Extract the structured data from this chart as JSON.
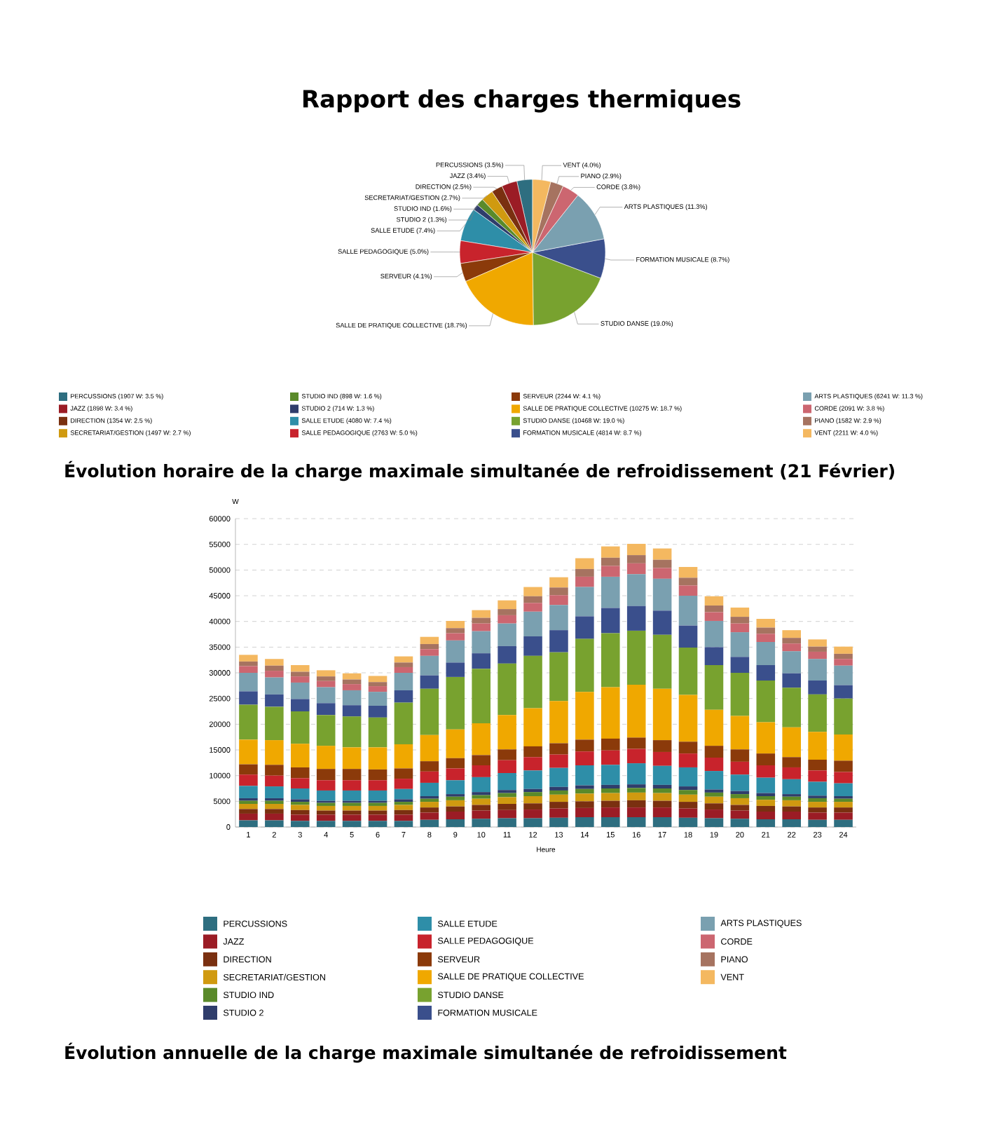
{
  "chart_data": [
    {
      "type": "pie",
      "title": "Rapport des charges thermiques",
      "legend": "bottom",
      "categories": [
        "PERCUSSIONS (1907 W: 3.5 %)",
        "JAZZ (1898 W: 3.4 %)",
        "DIRECTION (1354 W: 2.5 %)",
        "SECRETARIAT/GESTION (1497 W: 2.7 %)",
        "STUDIO IND (898 W: 1.6 %)",
        "STUDIO 2 (714 W: 1.3 %)",
        "SALLE ETUDE (4080 W: 7.4 %)",
        "SALLE PEDAGOGIQUE (2763 W: 5.0 %)",
        "SERVEUR (2244 W: 4.1 %)",
        "SALLE DE PRATIQUE COLLECTIVE (10275 W: 18.7 %)",
        "STUDIO DANSE (10468 W: 19.0 %)",
        "FORMATION MUSICALE (4814 W: 8.7 %)",
        "ARTS PLASTIQUES (6241 W: 11.3 %)",
        "CORDE (2091 W: 3.8 %)",
        "PIANO (1582 W: 2.9 %)",
        "VENT (2211 W: 4.0 %)"
      ],
      "values": [
        1907,
        1898,
        1354,
        1497,
        898,
        714,
        4080,
        2763,
        2244,
        10275,
        10468,
        4814,
        6241,
        2091,
        1582,
        2211
      ],
      "annotations": [
        "PERCUSSIONS (3.5%)",
        "JAZZ (3.4%)",
        "DIRECTION (2.5%)",
        "SECRETARIAT/GESTION (2.7%)",
        "STUDIO IND (1.6%)",
        "STUDIO 2 (1.3%)",
        "SALLE ETUDE (7.4%)",
        "SALLE PEDAGOGIQUE (5.0%)",
        "SERVEUR (4.1%)",
        "SALLE DE PRATIQUE COLLECTIVE (18.7%)",
        "STUDIO DANSE (19.0%)",
        "FORMATION MUSICALE (8.7%)",
        "ARTS PLASTIQUES (11.3%)",
        "CORDE (3.8%)",
        "PIANO (2.9%)",
        "VENT (4.0%)"
      ],
      "colors": [
        "#2e6e80",
        "#9b1c25",
        "#7a3010",
        "#d09a10",
        "#5a8a2a",
        "#2f3d6b",
        "#2e8ea8",
        "#c8232c",
        "#8b3a0a",
        "#f0a800",
        "#78a22f",
        "#3a4f8c",
        "#7aa0b0",
        "#cc6670",
        "#a67360",
        "#f4b860"
      ]
    },
    {
      "type": "bar",
      "stacked": true,
      "title": "Évolution horaire de la charge maximale simultanée de refroidissement (21 Février)",
      "ylabel": "W",
      "xlabel": "Heure",
      "legend": "bottom",
      "grid": "y",
      "categories": [
        "1",
        "2",
        "3",
        "4",
        "5",
        "6",
        "7",
        "8",
        "9",
        "10",
        "11",
        "12",
        "13",
        "14",
        "15",
        "16",
        "17",
        "18",
        "19",
        "20",
        "21",
        "22",
        "23",
        "24"
      ],
      "ylim": [
        0,
        60000
      ],
      "yticks": [
        0,
        5000,
        10000,
        15000,
        20000,
        25000,
        30000,
        35000,
        40000,
        45000,
        50000,
        55000,
        60000
      ],
      "series": [
        {
          "name": "PERCUSSIONS",
          "color": "#2e6e80",
          "values": [
            1300,
            1300,
            1200,
            1200,
            1200,
            1200,
            1200,
            1400,
            1500,
            1600,
            1700,
            1700,
            1800,
            1900,
            1900,
            1900,
            1900,
            1800,
            1700,
            1600,
            1500,
            1500,
            1400,
            1400
          ]
        },
        {
          "name": "JAZZ",
          "color": "#9b1c25",
          "values": [
            1300,
            1300,
            1200,
            1200,
            1200,
            1200,
            1200,
            1400,
            1500,
            1600,
            1600,
            1700,
            1800,
            1800,
            1900,
            1900,
            1900,
            1800,
            1700,
            1600,
            1500,
            1500,
            1400,
            1400
          ]
        },
        {
          "name": "DIRECTION",
          "color": "#7a3010",
          "values": [
            900,
            900,
            900,
            800,
            800,
            800,
            900,
            1000,
            1000,
            1100,
            1200,
            1200,
            1300,
            1300,
            1300,
            1400,
            1300,
            1300,
            1200,
            1100,
            1100,
            1000,
            1000,
            1000
          ]
        },
        {
          "name": "SECRETARIAT/GESTION",
          "color": "#d09a10",
          "values": [
            1000,
            1000,
            1000,
            900,
            900,
            900,
            1000,
            1100,
            1200,
            1200,
            1300,
            1400,
            1400,
            1500,
            1500,
            1500,
            1500,
            1400,
            1300,
            1300,
            1200,
            1200,
            1100,
            1100
          ]
        },
        {
          "name": "STUDIO IND",
          "color": "#5a8a2a",
          "values": [
            600,
            600,
            600,
            600,
            600,
            600,
            600,
            600,
            700,
            700,
            800,
            800,
            800,
            900,
            900,
            900,
            900,
            900,
            800,
            800,
            700,
            700,
            700,
            600
          ]
        },
        {
          "name": "STUDIO 2",
          "color": "#2f3d6b",
          "values": [
            500,
            500,
            500,
            400,
            400,
            400,
            500,
            500,
            500,
            600,
            600,
            600,
            700,
            700,
            700,
            700,
            700,
            700,
            600,
            600,
            600,
            500,
            500,
            500
          ]
        },
        {
          "name": "SALLE ETUDE",
          "color": "#2e8ea8",
          "values": [
            2400,
            2300,
            2100,
            2000,
            2000,
            2000,
            2000,
            2600,
            2700,
            2900,
            3300,
            3600,
            3700,
            3900,
            3900,
            4100,
            3700,
            3700,
            3600,
            3200,
            3000,
            2900,
            2700,
            2500
          ]
        },
        {
          "name": "SALLE PEDAGOGIQUE",
          "color": "#c8232c",
          "values": [
            2200,
            2100,
            2000,
            2000,
            2000,
            2000,
            2000,
            2200,
            2300,
            2300,
            2500,
            2600,
            2600,
            2700,
            2800,
            2800,
            2700,
            2700,
            2600,
            2500,
            2400,
            2300,
            2200,
            2200
          ]
        },
        {
          "name": "SERVEUR",
          "color": "#8b3a0a",
          "values": [
            2000,
            2100,
            2100,
            2200,
            2200,
            2100,
            2000,
            2000,
            2000,
            2000,
            2100,
            2100,
            2200,
            2300,
            2300,
            2200,
            2300,
            2300,
            2300,
            2400,
            2300,
            2000,
            2100,
            2200
          ]
        },
        {
          "name": "SALLE DE PRATIQUE COLLECTIVE",
          "color": "#f0a800",
          "values": [
            4800,
            4800,
            4600,
            4500,
            4200,
            4300,
            4700,
            5100,
            5600,
            6200,
            6700,
            7400,
            8200,
            9300,
            10000,
            10300,
            10000,
            9100,
            7000,
            6500,
            6100,
            5800,
            5400,
            5100
          ]
        },
        {
          "name": "STUDIO DANSE",
          "color": "#78a22f",
          "values": [
            6800,
            6500,
            6300,
            6000,
            6000,
            5800,
            8100,
            9000,
            10200,
            10600,
            10000,
            10200,
            9500,
            10300,
            10500,
            10500,
            10500,
            9200,
            8700,
            8400,
            8100,
            7700,
            7300,
            7000
          ]
        },
        {
          "name": "FORMATION MUSICALE",
          "color": "#3a4f8c",
          "values": [
            2600,
            2400,
            2400,
            2300,
            2200,
            2300,
            2400,
            2600,
            2800,
            3000,
            3400,
            3800,
            4300,
            4400,
            4900,
            4800,
            4700,
            4300,
            3500,
            3100,
            3000,
            2800,
            2700,
            2600
          ]
        },
        {
          "name": "ARTS PLASTIQUES",
          "color": "#7aa0b0",
          "values": [
            3600,
            3300,
            3200,
            3100,
            2900,
            2700,
            3400,
            3800,
            4300,
            4300,
            4400,
            4800,
            4900,
            5700,
            6100,
            6200,
            6200,
            5800,
            5100,
            4800,
            4500,
            4300,
            4200,
            3800
          ]
        },
        {
          "name": "CORDE",
          "color": "#cc6670",
          "values": [
            1300,
            1300,
            1200,
            1200,
            1200,
            1100,
            1100,
            1300,
            1400,
            1500,
            1600,
            1700,
            1900,
            2000,
            2100,
            2100,
            2100,
            2000,
            1700,
            1700,
            1600,
            1500,
            1400,
            1300
          ]
        },
        {
          "name": "PIANO",
          "color": "#a67360",
          "values": [
            900,
            1000,
            900,
            900,
            900,
            800,
            900,
            1000,
            1000,
            1100,
            1200,
            1300,
            1500,
            1500,
            1600,
            1600,
            1600,
            1500,
            1300,
            1300,
            1200,
            1100,
            1000,
            1000
          ]
        },
        {
          "name": "VENT",
          "color": "#f4b860",
          "values": [
            1300,
            1300,
            1300,
            1200,
            1200,
            1200,
            1200,
            1400,
            1400,
            1500,
            1700,
            1800,
            2000,
            2100,
            2200,
            2200,
            2200,
            2100,
            1800,
            1800,
            1700,
            1500,
            1400,
            1400
          ]
        }
      ]
    },
    {
      "type": "other",
      "title": "Évolution annuelle de la charge maximale simultanée de refroidissement"
    }
  ]
}
